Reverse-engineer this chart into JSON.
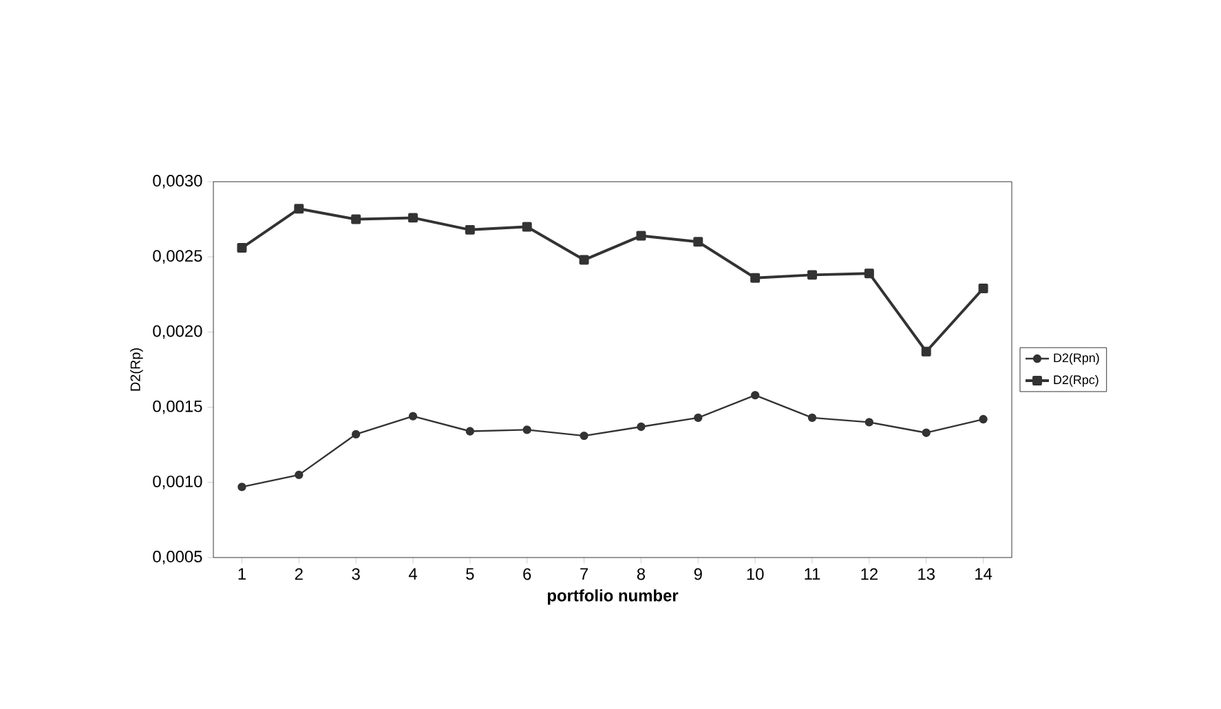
{
  "chart_data": {
    "type": "line",
    "xlabel": "portfolio number",
    "ylabel": "D2(Rp)",
    "categories": [
      "1",
      "2",
      "3",
      "4",
      "5",
      "6",
      "7",
      "8",
      "9",
      "10",
      "11",
      "12",
      "13",
      "14"
    ],
    "series": [
      {
        "name": "D2(Rpn)",
        "color": "#333333",
        "marker": "circle",
        "values": [
          0.00097,
          0.00105,
          0.00132,
          0.00144,
          0.00134,
          0.00135,
          0.00131,
          0.00137,
          0.00143,
          0.00158,
          0.00143,
          0.0014,
          0.00133,
          0.00142
        ]
      },
      {
        "name": "D2(Rpc)",
        "color": "#333333",
        "marker": "square",
        "values": [
          0.00256,
          0.00282,
          0.00275,
          0.00276,
          0.00268,
          0.0027,
          0.00248,
          0.00264,
          0.0026,
          0.00236,
          0.00238,
          0.00239,
          0.00187,
          0.00229
        ]
      }
    ],
    "ylim": [
      0.0005,
      0.003
    ],
    "yticks": [
      {
        "value": 0.0005,
        "label": "0,0005"
      },
      {
        "value": 0.001,
        "label": "0,0010"
      },
      {
        "value": 0.0015,
        "label": "0,0015"
      },
      {
        "value": 0.002,
        "label": "0,0020"
      },
      {
        "value": 0.0025,
        "label": "0,0025"
      },
      {
        "value": 0.003,
        "label": "0,0030"
      }
    ],
    "grid": false,
    "legend": "right",
    "line_style": "solid"
  }
}
